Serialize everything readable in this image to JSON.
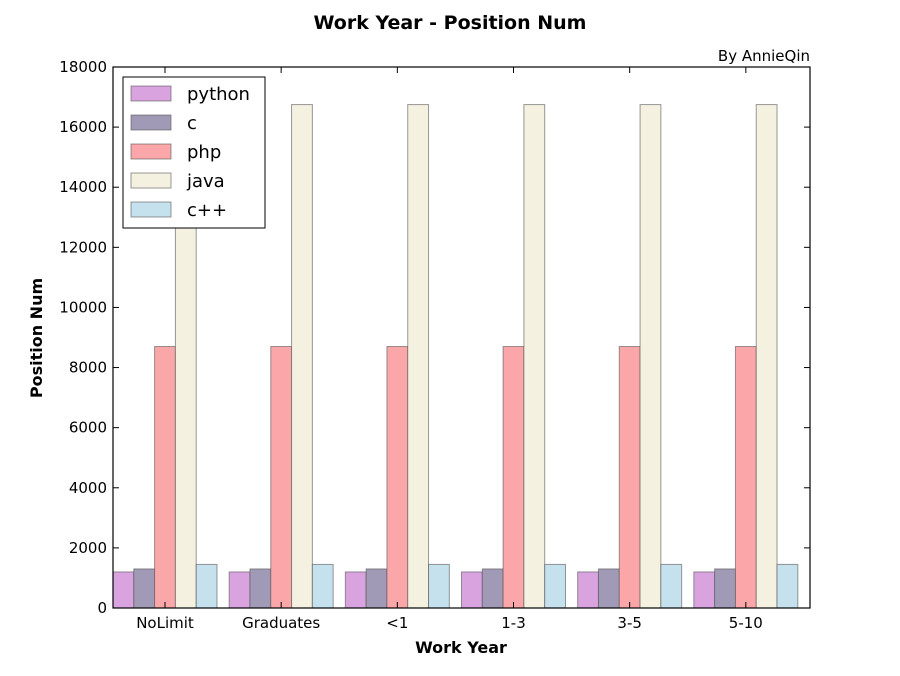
{
  "chart_data": {
    "type": "bar",
    "title": "Work Year - Position Num",
    "author_note": "By AnnieQin",
    "xlabel": "Work Year",
    "ylabel": "Position Num",
    "ylim": [
      0,
      18000
    ],
    "yticks": [
      0,
      2000,
      4000,
      6000,
      8000,
      10000,
      12000,
      14000,
      16000,
      18000
    ],
    "grid": false,
    "legend_position": "top-left",
    "categories": [
      "NoLimit",
      "Graduates",
      "<1",
      "1-3",
      "3-5",
      "5-10"
    ],
    "series": [
      {
        "name": "python",
        "color": "#d9a3e0",
        "values": [
          1200,
          1200,
          1200,
          1200,
          1200,
          1200
        ]
      },
      {
        "name": "c",
        "color": "#a19ab6",
        "values": [
          1300,
          1300,
          1300,
          1300,
          1300,
          1300
        ]
      },
      {
        "name": "php",
        "color": "#fba7aa",
        "values": [
          8700,
          8700,
          8700,
          8700,
          8700,
          8700
        ]
      },
      {
        "name": "java",
        "color": "#f5f1e1",
        "values": [
          16750,
          16750,
          16750,
          16750,
          16750,
          16750
        ]
      },
      {
        "name": "c++",
        "color": "#c6e1ee",
        "values": [
          1450,
          1450,
          1450,
          1450,
          1450,
          1450
        ]
      }
    ]
  }
}
